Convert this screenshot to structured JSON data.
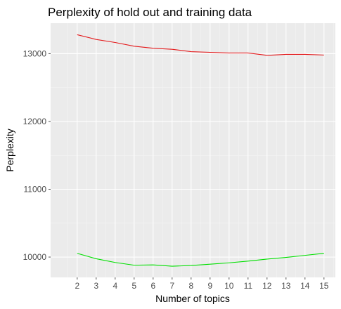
{
  "chart_data": {
    "type": "line",
    "title": "Perplexity of hold out and training data",
    "xlabel": "Number of topics",
    "ylabel": "Perplexity",
    "x": [
      2,
      3,
      4,
      5,
      6,
      7,
      8,
      9,
      10,
      11,
      12,
      13,
      14,
      15
    ],
    "xlim": [
      0.6,
      15.6
    ],
    "ylim": [
      9700,
      13450
    ],
    "y_ticks": [
      10000,
      11000,
      12000,
      13000
    ],
    "x_ticks": [
      2,
      3,
      4,
      5,
      6,
      7,
      8,
      9,
      10,
      11,
      12,
      13,
      14,
      15
    ],
    "grid": true,
    "legend": "none",
    "series": [
      {
        "color": "#e41a1c",
        "values": [
          13280,
          13210,
          13165,
          13110,
          13080,
          13065,
          13030,
          13020,
          13010,
          13010,
          12975,
          12990,
          12990,
          12980
        ]
      },
      {
        "color": "#00e000",
        "values": [
          10055,
          9975,
          9920,
          9880,
          9885,
          9865,
          9875,
          9895,
          9915,
          9940,
          9970,
          9995,
          10025,
          10055
        ]
      }
    ],
    "colors": {
      "panel": "#ebebeb",
      "grid_major": "#ffffff",
      "grid_minor": "#f4f4f4",
      "tick": "#4d4d4d"
    }
  }
}
